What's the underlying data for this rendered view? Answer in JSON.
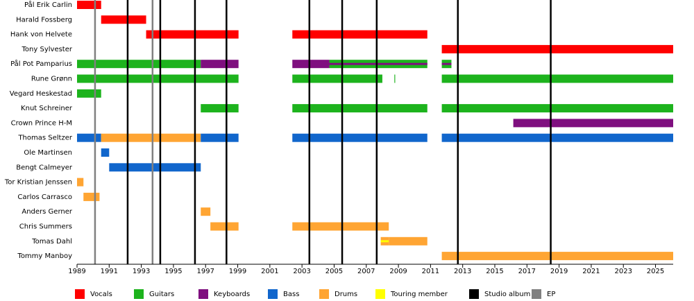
{
  "chart_data": {
    "type": "timeline",
    "xlim": [
      1989,
      2026.1
    ],
    "xticks": [
      1989,
      1991,
      1993,
      1995,
      1997,
      1999,
      2001,
      2003,
      2005,
      2007,
      2009,
      2011,
      2013,
      2015,
      2017,
      2019,
      2021,
      2023,
      2025
    ],
    "roles": [
      {
        "name": "Vocals",
        "color": "#ff0000"
      },
      {
        "name": "Guitars",
        "color": "#1db31d"
      },
      {
        "name": "Keyboards",
        "color": "#7f0f7f"
      },
      {
        "name": "Bass",
        "color": "#1166cc"
      },
      {
        "name": "Drums",
        "color": "#ffa533"
      },
      {
        "name": "Touring member",
        "color": "#ffff00"
      }
    ],
    "events": [
      {
        "name": "Studio album",
        "color": "#000000",
        "x": [
          1992.15,
          1994.18,
          1996.34,
          1998.3,
          2003.46,
          2005.5,
          2007.65,
          2012.7,
          2018.48
        ]
      },
      {
        "name": "EP",
        "color": "#808080",
        "x": [
          1990.12,
          1993.7
        ]
      }
    ],
    "members": [
      {
        "name": "Pål Erik Carlin",
        "segments": [
          {
            "role": "Vocals",
            "start": 1989,
            "end": 1990.5
          }
        ]
      },
      {
        "name": "Harald Fossberg",
        "segments": [
          {
            "role": "Vocals",
            "start": 1990.5,
            "end": 1993.3
          }
        ]
      },
      {
        "name": "Hank von Helvete",
        "segments": [
          {
            "role": "Vocals",
            "start": 1993.3,
            "end": 1999.05
          },
          {
            "role": "Vocals",
            "start": 2002.4,
            "end": 2010.8
          }
        ]
      },
      {
        "name": "Tony Sylvester",
        "segments": [
          {
            "role": "Vocals",
            "start": 2011.7,
            "end": 2026.1
          }
        ]
      },
      {
        "name": "Pål Pot Pamparius",
        "segments": [
          {
            "role": "Guitars",
            "start": 1989,
            "end": 1996.7
          },
          {
            "role": "Keyboards",
            "start": 1996.7,
            "end": 1999.05
          },
          {
            "role": "Keyboards",
            "start": 2002.4,
            "end": 2004.7
          },
          {
            "role": "Guitars",
            "start": 2004.7,
            "end": 2010.8,
            "stripe": "Keyboards"
          },
          {
            "role": "Guitars",
            "start": 2011.7,
            "end": 2012.3,
            "stripe": "Keyboards"
          }
        ]
      },
      {
        "name": "Rune Grønn",
        "segments": [
          {
            "role": "Guitars",
            "start": 1989,
            "end": 1999.05
          },
          {
            "role": "Guitars",
            "start": 2002.4,
            "end": 2008.0
          },
          {
            "role": "Guitars",
            "start": 2008.75,
            "end": 2008.8
          },
          {
            "role": "Guitars",
            "start": 2011.7,
            "end": 2026.1
          }
        ]
      },
      {
        "name": "Vegard Heskestad",
        "segments": [
          {
            "role": "Guitars",
            "start": 1989,
            "end": 1990.5
          }
        ]
      },
      {
        "name": "Knut Schreiner",
        "segments": [
          {
            "role": "Guitars",
            "start": 1996.7,
            "end": 1999.05
          },
          {
            "role": "Guitars",
            "start": 2002.4,
            "end": 2010.8
          },
          {
            "role": "Guitars",
            "start": 2011.7,
            "end": 2026.1
          }
        ]
      },
      {
        "name": "Crown Prince H-M",
        "segments": [
          {
            "role": "Keyboards",
            "start": 2016.15,
            "end": 2026.1
          }
        ]
      },
      {
        "name": "Thomas Seltzer",
        "segments": [
          {
            "role": "Bass",
            "start": 1989,
            "end": 1990.5
          },
          {
            "role": "Drums",
            "start": 1990.5,
            "end": 1996.7
          },
          {
            "role": "Bass",
            "start": 1996.7,
            "end": 1999.05
          },
          {
            "role": "Bass",
            "start": 2002.4,
            "end": 2010.8
          },
          {
            "role": "Bass",
            "start": 2011.7,
            "end": 2026.1
          }
        ]
      },
      {
        "name": "Ole Martinsen",
        "segments": [
          {
            "role": "Bass",
            "start": 1990.5,
            "end": 1991.0
          }
        ]
      },
      {
        "name": "Bengt Calmeyer",
        "segments": [
          {
            "role": "Bass",
            "start": 1991.0,
            "end": 1996.7
          }
        ]
      },
      {
        "name": "Tor Kristian Jenssen",
        "segments": [
          {
            "role": "Drums",
            "start": 1989,
            "end": 1989.4
          }
        ]
      },
      {
        "name": "Carlos Carrasco",
        "segments": [
          {
            "role": "Drums",
            "start": 1989.4,
            "end": 1990.4
          }
        ]
      },
      {
        "name": "Anders Gerner",
        "segments": [
          {
            "role": "Drums",
            "start": 1996.7,
            "end": 1997.3
          }
        ]
      },
      {
        "name": "Chris Summers",
        "segments": [
          {
            "role": "Drums",
            "start": 1997.3,
            "end": 1999.05
          },
          {
            "role": "Drums",
            "start": 2002.4,
            "end": 2008.4
          }
        ]
      },
      {
        "name": "Tomas Dahl",
        "segments": [
          {
            "role": "Drums",
            "start": 2007.9,
            "end": 2008.4,
            "stripe": "Touring member"
          },
          {
            "role": "Drums",
            "start": 2008.4,
            "end": 2010.8
          }
        ]
      },
      {
        "name": "Tommy Manboy",
        "segments": [
          {
            "role": "Drums",
            "start": 2011.7,
            "end": 2026.1
          }
        ]
      }
    ]
  }
}
